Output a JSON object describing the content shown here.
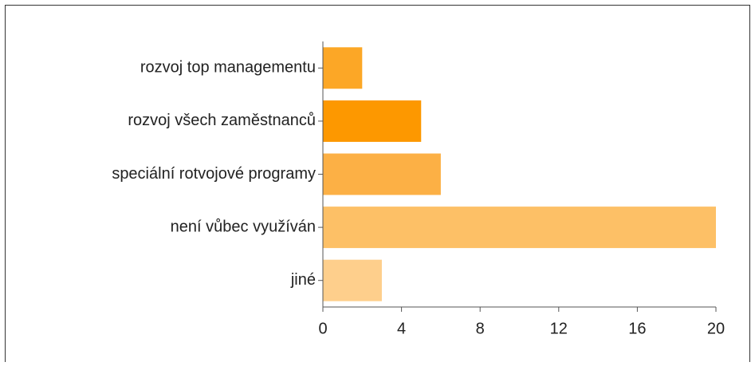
{
  "chart_data": {
    "type": "bar",
    "orientation": "horizontal",
    "categories": [
      "rozvoj top managementu",
      "rozvoj všech zaměstnanců",
      "speciální rotvojové programy",
      "není vůbec využíván",
      "jiné"
    ],
    "values": [
      2,
      5,
      6,
      20,
      3
    ],
    "colors": [
      "#fca726",
      "#fd9800",
      "#fcb045",
      "#fdc066",
      "#fecf8c"
    ],
    "xlim": [
      0,
      20
    ],
    "xticks": [
      0,
      4,
      8,
      12,
      16,
      20
    ],
    "grid": false
  }
}
